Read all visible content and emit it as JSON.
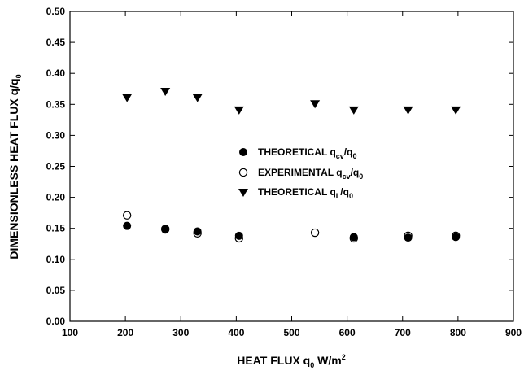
{
  "chart_data": {
    "type": "scatter",
    "xlabel_main": "HEAT FLUX q",
    "xlabel_sub": "0",
    "xlabel_unit": " W/m",
    "xlabel_sup": "2",
    "ylabel_main": "DIMENSIONLESS HEAT FLUX q/q",
    "ylabel_sub": "0",
    "xlim": [
      100,
      900
    ],
    "ylim": [
      0.0,
      0.5
    ],
    "xticks": [
      "100",
      "200",
      "300",
      "400",
      "500",
      "600",
      "700",
      "800",
      "900"
    ],
    "yticks": [
      "0.00",
      "0.05",
      "0.10",
      "0.15",
      "0.20",
      "0.25",
      "0.30",
      "0.35",
      "0.40",
      "0.45",
      "0.50"
    ],
    "grid": false,
    "legend_position": "center",
    "series": [
      {
        "name_main": "THEORETICAL q",
        "name_sub": "cv",
        "name_tail": "/q",
        "name_sub2": "0",
        "marker": "filled-circle",
        "x": [
          203,
          272,
          330,
          405,
          612,
          710,
          796
        ],
        "y": [
          0.154,
          0.148,
          0.145,
          0.138,
          0.136,
          0.135,
          0.136
        ]
      },
      {
        "name_main": "EXPERIMENTAL q",
        "name_sub": "cv",
        "name_tail": "/q",
        "name_sub2": "0",
        "marker": "open-circle",
        "x": [
          203,
          272,
          330,
          405,
          542,
          612,
          710,
          796
        ],
        "y": [
          0.171,
          0.149,
          0.142,
          0.134,
          0.143,
          0.134,
          0.138,
          0.138
        ]
      },
      {
        "name_main": "THEORETICAL q",
        "name_sub": "L",
        "name_tail": "/q",
        "name_sub2": "0",
        "marker": "down-triangle",
        "x": [
          203,
          272,
          330,
          405,
          542,
          612,
          710,
          796
        ],
        "y": [
          0.36,
          0.37,
          0.36,
          0.34,
          0.35,
          0.34,
          0.34,
          0.34
        ]
      }
    ]
  }
}
